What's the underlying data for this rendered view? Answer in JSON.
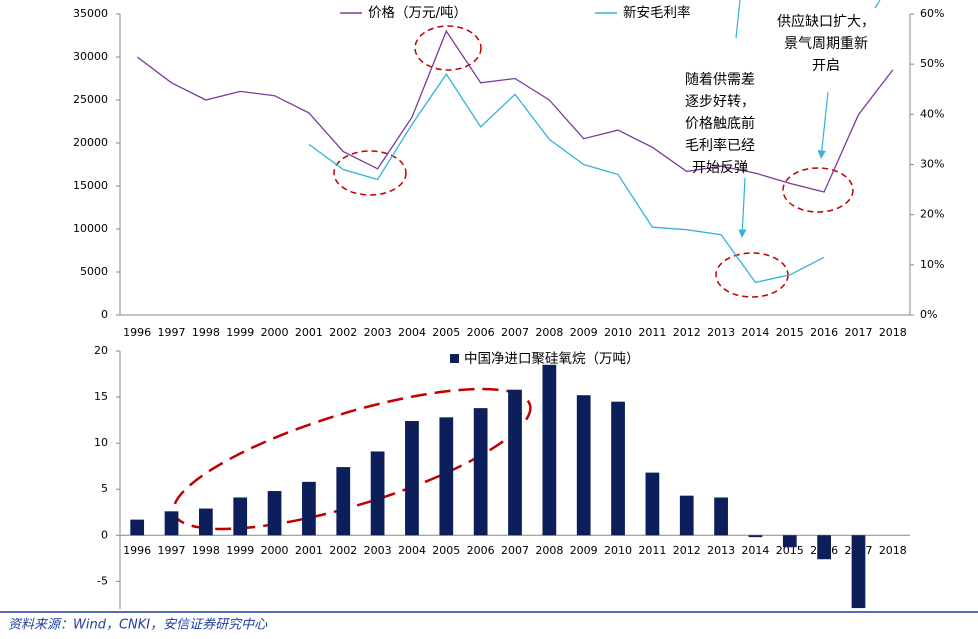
{
  "chart_data": [
    {
      "type": "line",
      "categories": [
        "1996",
        "1997",
        "1998",
        "1999",
        "2000",
        "2001",
        "2002",
        "2003",
        "2004",
        "2005",
        "2006",
        "2007",
        "2008",
        "2009",
        "2010",
        "2011",
        "2012",
        "2013",
        "2014",
        "2015",
        "2016",
        "2017",
        "2018"
      ],
      "series": [
        {
          "name": "价格（万元/吨）",
          "color": "#7a3b9c",
          "values": [
            30000,
            27000,
            25000,
            26000,
            25500,
            23500,
            19000,
            17000,
            23000,
            33000,
            27000,
            27500,
            25000,
            20500,
            21500,
            19500,
            16700,
            17300,
            16500,
            15300,
            14300,
            23300,
            28500
          ]
        },
        {
          "name": "新安毛利率",
          "color": "#33b3d9",
          "axis": "y2",
          "values": [
            null,
            null,
            null,
            null,
            null,
            34,
            29,
            27,
            38,
            48,
            37.5,
            44,
            35,
            30,
            28,
            17.5,
            17,
            16,
            6.5,
            8,
            11.5,
            null,
            null
          ]
        }
      ],
      "ylim": [
        0,
        35000
      ],
      "yticks": [
        0,
        5000,
        10000,
        15000,
        20000,
        25000,
        30000,
        35000
      ],
      "y2lim": [
        0,
        60
      ],
      "y2ticks": [
        {
          "value": 0,
          "label": "0%"
        },
        {
          "value": 10,
          "label": "10%"
        },
        {
          "value": 20,
          "label": "20%"
        },
        {
          "value": 30,
          "label": "30%"
        },
        {
          "value": 40,
          "label": "40%"
        },
        {
          "value": 50,
          "label": "50%"
        },
        {
          "value": 60,
          "label": "60%"
        }
      ],
      "annotations": [
        {
          "lines": [
            "随着供需差",
            "逐步好转，",
            "价格触底前",
            "毛利率已经",
            "开始反弹"
          ]
        },
        {
          "lines": [
            "供应缺口扩大，",
            "景气周期重新",
            "开启"
          ]
        }
      ]
    },
    {
      "type": "bar",
      "categories": [
        "1996",
        "1997",
        "1998",
        "1999",
        "2000",
        "2001",
        "2002",
        "2003",
        "2004",
        "2005",
        "2006",
        "2007",
        "2008",
        "2009",
        "2010",
        "2011",
        "2012",
        "2013",
        "2014",
        "2015",
        "2016",
        "2017",
        "2018"
      ],
      "category_color": "#e00000",
      "series": [
        {
          "name": "中国净进口聚硅氧烷（万吨）",
          "color": "#0c1f5b",
          "values": [
            1.7,
            2.6,
            2.9,
            4.1,
            4.8,
            5.8,
            7.4,
            9.1,
            12.4,
            12.8,
            13.8,
            15.8,
            18.5,
            15.2,
            14.5,
            6.8,
            4.3,
            4.1,
            -0.2,
            -1.3,
            -2.6,
            -7.9,
            null
          ]
        }
      ],
      "ylim": [
        -8,
        20
      ],
      "yticks": [
        -5,
        0,
        5,
        10,
        15,
        20
      ]
    }
  ],
  "source": "资料来源：Wind，CNKI，安信证券研究中心"
}
